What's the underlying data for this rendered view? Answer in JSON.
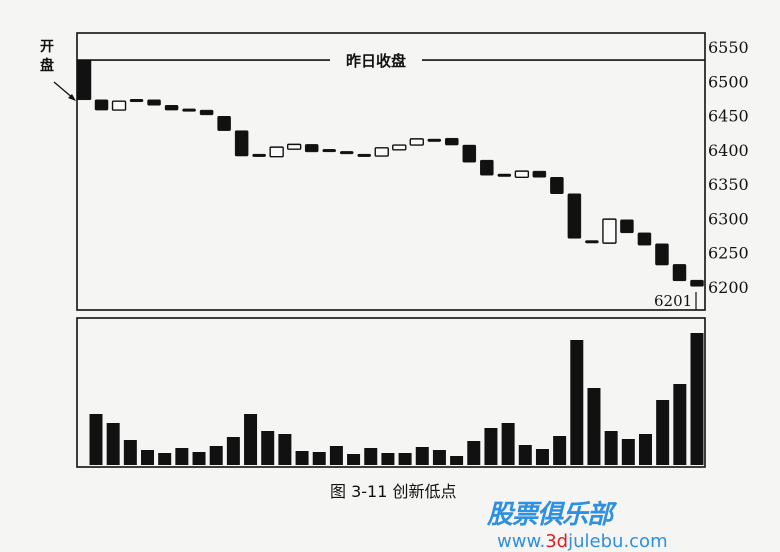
{
  "chart_data": [
    {
      "type": "candlestick",
      "title": "",
      "y_ticks": [
        6550,
        6500,
        6450,
        6400,
        6350,
        6300,
        6250,
        6200
      ],
      "ylim": [
        6185,
        6568
      ],
      "reference_line": {
        "label": "昨日收盘",
        "value": 6531
      },
      "open_annotation": "开盘",
      "last_price_label": "6201",
      "candles": [
        {
          "open": 6531,
          "close": 6473
        },
        {
          "open": 6473,
          "close": 6458
        },
        {
          "open": 6458,
          "close": 6471
        },
        {
          "open": 6472,
          "close": 6472
        },
        {
          "open": 6473,
          "close": 6465
        },
        {
          "open": 6465,
          "close": 6458
        },
        {
          "open": 6458,
          "close": 6458
        },
        {
          "open": 6458,
          "close": 6451
        },
        {
          "open": 6449,
          "close": 6428
        },
        {
          "open": 6428,
          "close": 6391
        },
        {
          "open": 6392,
          "close": 6392
        },
        {
          "open": 6390,
          "close": 6404
        },
        {
          "open": 6401,
          "close": 6408
        },
        {
          "open": 6408,
          "close": 6397
        },
        {
          "open": 6399,
          "close": 6399
        },
        {
          "open": 6396,
          "close": 6396
        },
        {
          "open": 6392,
          "close": 6392
        },
        {
          "open": 6391,
          "close": 6403
        },
        {
          "open": 6400,
          "close": 6407
        },
        {
          "open": 6407,
          "close": 6416
        },
        {
          "open": 6414,
          "close": 6414
        },
        {
          "open": 6417,
          "close": 6407
        },
        {
          "open": 6407,
          "close": 6382
        },
        {
          "open": 6385,
          "close": 6363
        },
        {
          "open": 6363,
          "close": 6363
        },
        {
          "open": 6360,
          "close": 6369
        },
        {
          "open": 6369,
          "close": 6360
        },
        {
          "open": 6360,
          "close": 6336
        },
        {
          "open": 6336,
          "close": 6271
        },
        {
          "open": 6266,
          "close": 6266
        },
        {
          "open": 6264,
          "close": 6299
        },
        {
          "open": 6298,
          "close": 6279
        },
        {
          "open": 6279,
          "close": 6261
        },
        {
          "open": 6263,
          "close": 6232
        },
        {
          "open": 6233,
          "close": 6209
        },
        {
          "open": 6210,
          "close": 6201
        }
      ]
    },
    {
      "type": "bar",
      "title": "",
      "values": [
        51,
        42,
        25,
        15,
        12,
        17,
        13,
        19,
        28,
        51,
        34,
        31,
        14,
        13,
        19,
        11,
        17,
        12,
        12,
        18,
        15,
        9,
        24,
        37,
        42,
        20,
        16,
        29,
        125,
        77,
        34,
        26,
        31,
        65,
        81,
        132
      ],
      "ylim": [
        0,
        140
      ]
    }
  ],
  "caption": "图 3-11  创新低点",
  "watermark": {
    "cn": "股票俱乐部",
    "url_pre": "www.",
    "url_red": "3d",
    "url_post": "julebu.com"
  },
  "colors": {
    "ink": "#111111",
    "paper": "#f5f5f3",
    "watermark": "#2f8fe0"
  }
}
